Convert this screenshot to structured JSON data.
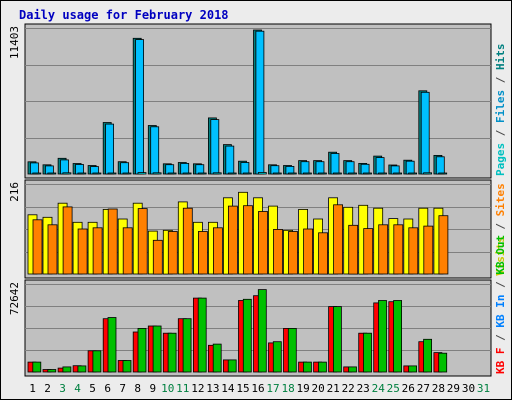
{
  "chart_data": {
    "type": "bar",
    "title": "Daily usage for February 2018",
    "categories": [
      "1",
      "2",
      "3",
      "4",
      "5",
      "6",
      "7",
      "8",
      "9",
      "10",
      "11",
      "12",
      "13",
      "14",
      "15",
      "16",
      "17",
      "18",
      "19",
      "20",
      "21",
      "22",
      "23",
      "24",
      "25",
      "26",
      "27",
      "28",
      "29",
      "30",
      "31"
    ],
    "weekend_days": [
      "3",
      "4",
      "10",
      "11",
      "17",
      "18",
      "24",
      "25",
      "31"
    ],
    "panels": [
      {
        "max_label": "11403",
        "ymax": 11403,
        "axis_labels": [
          {
            "text": "Pages",
            "color": "#00c0c0"
          },
          {
            "text": " / ",
            "color": "#4a4a4a"
          },
          {
            "text": "Files",
            "color": "#0090c8"
          },
          {
            "text": " / ",
            "color": "#4a4a4a"
          },
          {
            "text": "Hits",
            "color": "#008080"
          }
        ],
        "series": [
          {
            "name": "Hits",
            "color": "#008080",
            "values": [
              950,
              720,
              1230,
              820,
              660,
              4020,
              960,
              10600,
              3790,
              800,
              900,
              800,
              4380,
              2300,
              1000,
              11250,
              720,
              660,
              1050,
              1050,
              1700,
              1050,
              830,
              1400,
              700,
              1080,
              6500,
              1450,
              0,
              0,
              0
            ]
          },
          {
            "name": "Files",
            "color": "#00c0ff",
            "values": [
              870,
              630,
              1100,
              740,
              580,
              3900,
              880,
              10500,
              3690,
              730,
              830,
              730,
              4250,
              2180,
              900,
              11150,
              650,
              590,
              960,
              960,
              1600,
              960,
              760,
              1280,
              630,
              1000,
              6380,
              1340,
              0,
              0,
              0
            ]
          },
          {
            "name": "Pages",
            "color": "#00ffff",
            "values": [
              80,
              60,
              90,
              60,
              50,
              80,
              60,
              110,
              90,
              60,
              60,
              60,
              90,
              80,
              70,
              120,
              50,
              50,
              60,
              60,
              70,
              60,
              60,
              70,
              50,
              60,
              90,
              70,
              0,
              0,
              0
            ]
          }
        ]
      },
      {
        "max_label": "216",
        "ymax": 216,
        "axis_labels": [
          {
            "text": "Visits",
            "color": "#c8c800"
          },
          {
            "text": " / ",
            "color": "#4a4a4a"
          },
          {
            "text": "Sites",
            "color": "#ff8000"
          }
        ],
        "series": [
          {
            "name": "Visits",
            "color": "#ffff00",
            "values": [
              142,
              136,
              170,
              124,
              124,
              155,
              132,
              170,
              103,
              105,
              173,
              124,
              124,
              183,
              196,
              183,
              163,
              105,
              155,
              132,
              183,
              160,
              165,
              158,
              133,
              132,
              158,
              158,
              0,
              0,
              0
            ]
          },
          {
            "name": "Sites",
            "color": "#ff8000",
            "values": [
              130,
              118,
              161,
              108,
              111,
              156,
              111,
              157,
              81,
              102,
              158,
              102,
              111,
              163,
              164,
              150,
              107,
              102,
              108,
              99,
              166,
              117,
              109,
              118,
              118,
              111,
              115,
              140,
              0,
              0,
              0
            ]
          }
        ]
      },
      {
        "max_label": "72642",
        "ymax": 72642,
        "axis_labels": [
          {
            "text": "KB F",
            "color": "#ff0000"
          },
          {
            "text": " / ",
            "color": "#4a4a4a"
          },
          {
            "text": "KB In",
            "color": "#0080ff"
          },
          {
            "text": " / ",
            "color": "#4a4a4a"
          },
          {
            "text": "KB Out",
            "color": "#00c000"
          }
        ],
        "series": [
          {
            "name": "KB F",
            "color": "#ff0000",
            "values": [
              8200,
              2100,
              3200,
              5200,
              17500,
              44000,
              9500,
              33000,
              38000,
              32000,
              44000,
              61000,
              22000,
              10000,
              59000,
              63000,
              24000,
              36000,
              8200,
              8200,
              54000,
              4200,
              32000,
              57000,
              58000,
              5000,
              25000,
              16000,
              0,
              0,
              0
            ]
          },
          {
            "name": "KB In",
            "color": "#0080ff",
            "values": [
              0,
              0,
              0,
              0,
              0,
              0,
              0,
              0,
              0,
              0,
              0,
              0,
              0,
              0,
              0,
              0,
              0,
              0,
              0,
              0,
              0,
              0,
              0,
              0,
              0,
              0,
              0,
              0,
              0,
              0,
              0
            ]
          },
          {
            "name": "KB Out",
            "color": "#00c000",
            "values": [
              8200,
              2100,
              4200,
              5000,
              17500,
              45000,
              9500,
              36000,
              38000,
              32000,
              44000,
              61000,
              23000,
              10000,
              60000,
              68000,
              25000,
              36000,
              8200,
              8200,
              54000,
              4200,
              32000,
              59000,
              59000,
              5000,
              27000,
              15500,
              0,
              0,
              0
            ]
          }
        ]
      }
    ]
  }
}
